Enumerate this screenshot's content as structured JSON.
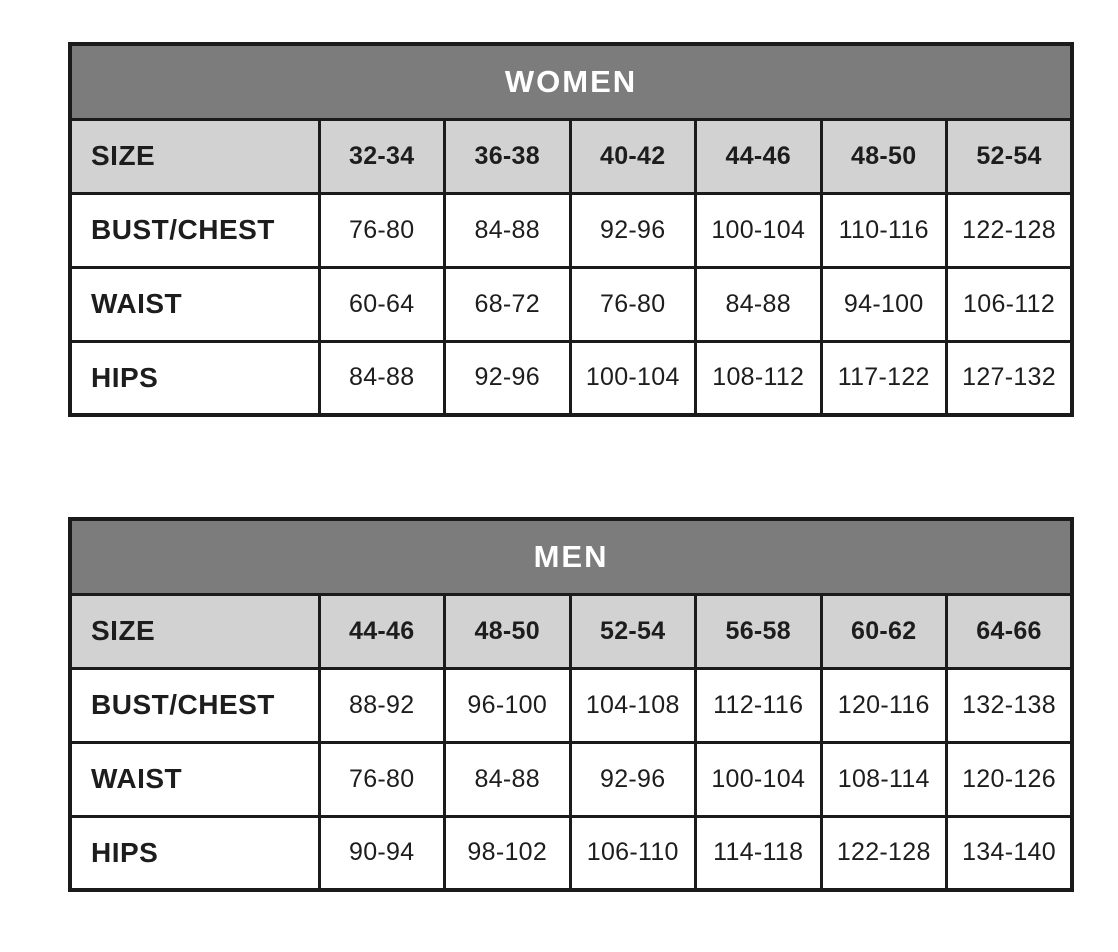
{
  "colors": {
    "title_header_bg": "#7c7c7c",
    "title_header_text": "#ffffff",
    "size_row_bg": "#d2d2d2",
    "data_cell_bg": "#ffffff",
    "border": "#1b1b1b",
    "text": "#1d1d1d"
  },
  "tables": [
    {
      "title": "WOMEN",
      "rows": [
        {
          "label": "SIZE",
          "values": [
            "32-34",
            "36-38",
            "40-42",
            "44-46",
            "48-50",
            "52-54"
          ]
        },
        {
          "label": "BUST/CHEST",
          "values": [
            "76-80",
            "84-88",
            "92-96",
            "100-104",
            "110-116",
            "122-128"
          ]
        },
        {
          "label": "WAIST",
          "values": [
            "60-64",
            "68-72",
            "76-80",
            "84-88",
            "94-100",
            "106-112"
          ]
        },
        {
          "label": "HIPS",
          "values": [
            "84-88",
            "92-96",
            "100-104",
            "108-112",
            "117-122",
            "127-132"
          ]
        }
      ]
    },
    {
      "title": "MEN",
      "rows": [
        {
          "label": "SIZE",
          "values": [
            "44-46",
            "48-50",
            "52-54",
            "56-58",
            "60-62",
            "64-66"
          ]
        },
        {
          "label": "BUST/CHEST",
          "values": [
            "88-92",
            "96-100",
            "104-108",
            "112-116",
            "120-116",
            "132-138"
          ]
        },
        {
          "label": "WAIST",
          "values": [
            "76-80",
            "84-88",
            "92-96",
            "100-104",
            "108-114",
            "120-126"
          ]
        },
        {
          "label": "HIPS",
          "values": [
            "90-94",
            "98-102",
            "106-110",
            "114-118",
            "122-128",
            "134-140"
          ]
        }
      ]
    }
  ]
}
